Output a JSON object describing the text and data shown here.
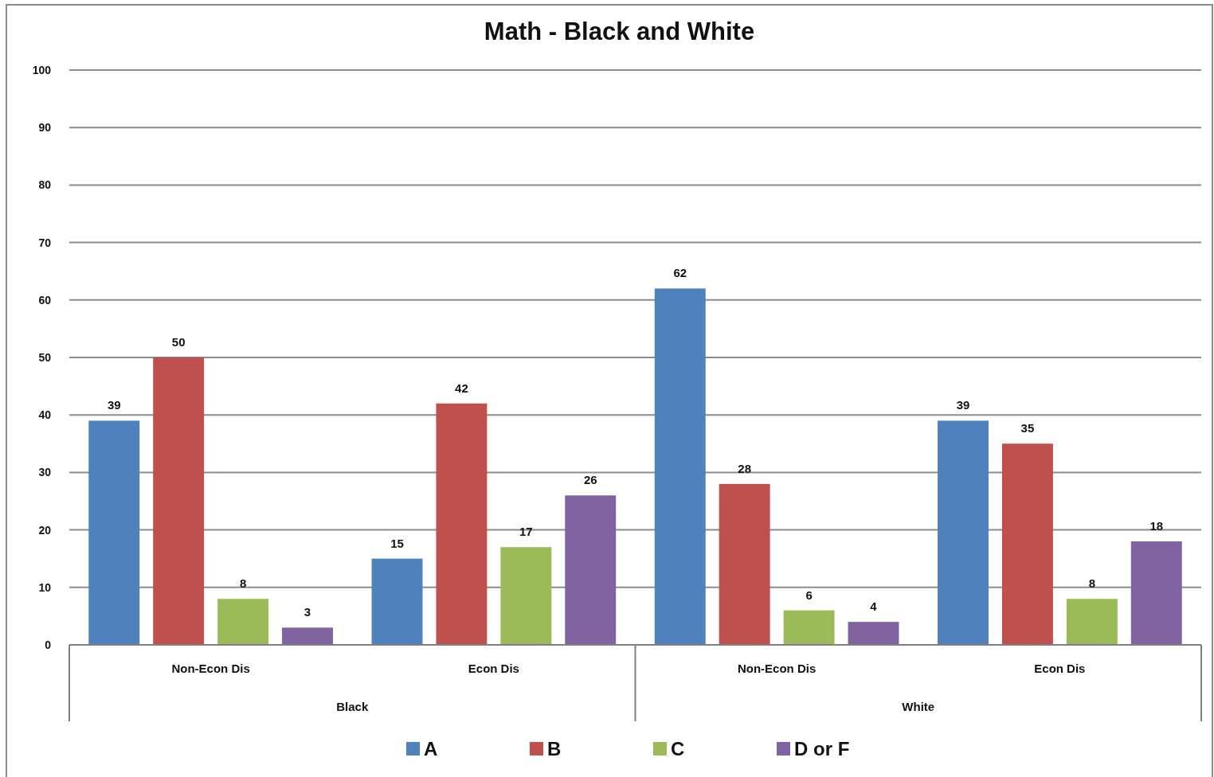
{
  "chart_data": {
    "type": "bar",
    "title": "Math - Black and White",
    "categories": [
      "Non-Econ Dis",
      "Econ Dis",
      "Non-Econ Dis",
      "Econ Dis"
    ],
    "series": [
      {
        "name": "A",
        "color": "#4f81bd",
        "values": [
          39,
          15,
          62,
          39
        ]
      },
      {
        "name": "B",
        "color": "#c0504d",
        "values": [
          50,
          42,
          28,
          35
        ]
      },
      {
        "name": "C",
        "color": "#9bbb59",
        "values": [
          8,
          17,
          6,
          8
        ]
      },
      {
        "name": "D or F",
        "color": "#8064a2",
        "values": [
          3,
          26,
          4,
          18
        ]
      }
    ],
    "annotations": [
      "Black",
      "White"
    ],
    "ylim": [
      0,
      100
    ],
    "yticks": [
      0,
      10,
      20,
      30,
      40,
      50,
      60,
      70,
      80,
      90,
      100
    ],
    "grid": "y",
    "legend": "bottom",
    "data_labels": true
  }
}
